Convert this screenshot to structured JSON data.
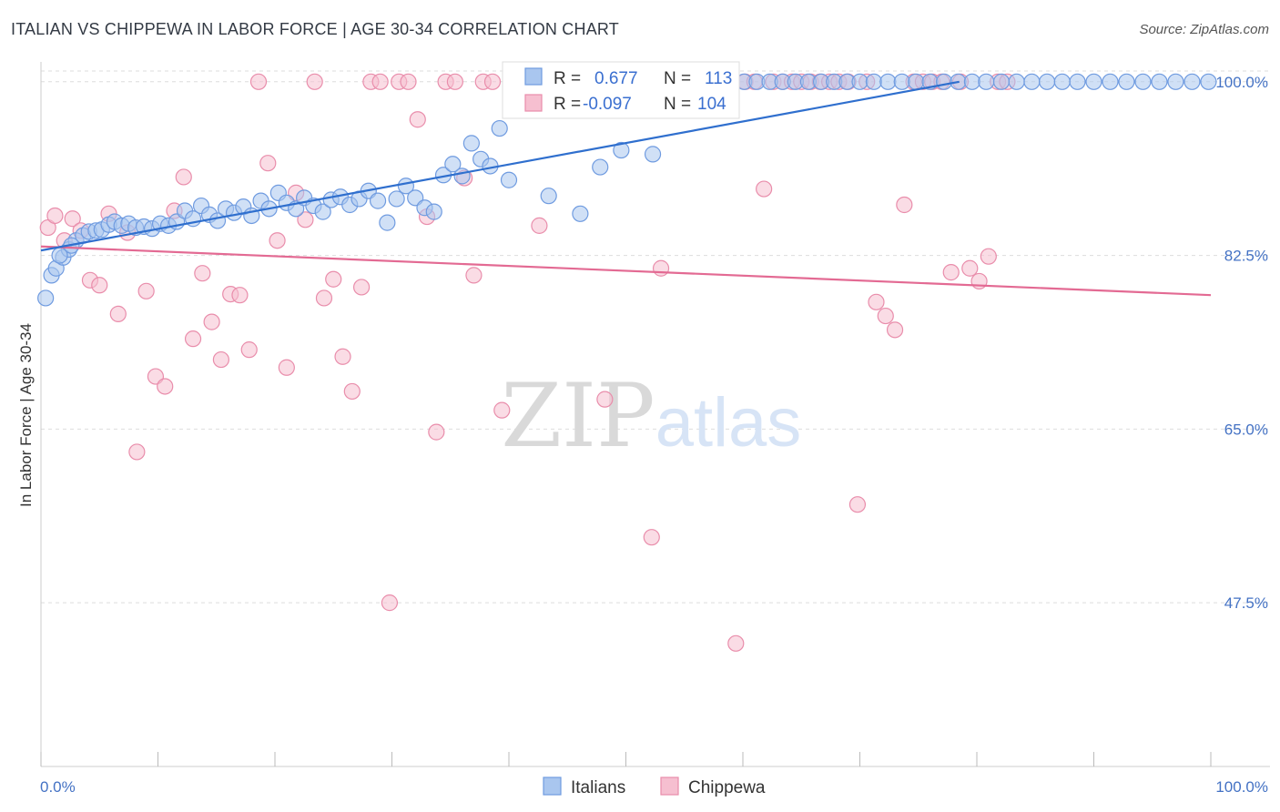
{
  "header": {
    "title": "ITALIAN VS CHIPPEWA IN LABOR FORCE | AGE 30-34 CORRELATION CHART",
    "source": "Source: ZipAtlas.com"
  },
  "watermark": {
    "zip": "ZIP",
    "atlas": "atlas"
  },
  "colors": {
    "blue_fill": "#a9c6ef",
    "blue_stroke": "#6f9be0",
    "blue_line": "#2f6fce",
    "pink_fill": "#f6bfd0",
    "pink_stroke": "#e98dab",
    "pink_line": "#e36a93",
    "tick_text": "#4472c4",
    "grid": "#dddddd"
  },
  "legend": {
    "rows": [
      {
        "r_label": "R =",
        "r_value": "0.677",
        "n_label": "N =",
        "n_value": "113",
        "series": "Italians"
      },
      {
        "r_label": "R =",
        "r_value": "-0.097",
        "n_label": "N =",
        "n_value": "104",
        "series": "Chippewa"
      }
    ]
  },
  "bottom_legend": [
    "Italians",
    "Chippewa"
  ],
  "chart_data": {
    "type": "scatter",
    "ylabel": "In Labor Force | Age 30-34",
    "xlim": [
      0,
      100
    ],
    "ylim": [
      31,
      102
    ],
    "x_tick_labels": [
      "0.0%",
      "100.0%"
    ],
    "y_ticks": [
      47.5,
      65.0,
      82.5,
      100.0
    ],
    "y_tick_labels": [
      "47.5%",
      "65.0%",
      "82.5%",
      "100.0%"
    ],
    "grid": true,
    "legend_position": "top-center",
    "series": [
      {
        "name": "Italians",
        "trend": {
          "x": [
            0,
            78.5
          ],
          "y": [
            83.0,
            100.0
          ]
        },
        "x": [
          0.4,
          0.9,
          1.3,
          1.9,
          2.4,
          3.0,
          3.6,
          4.1,
          4.7,
          5.2,
          5.8,
          6.3,
          6.9,
          7.5,
          8.1,
          8.8,
          9.5,
          10.2,
          10.9,
          11.6,
          12.3,
          13.0,
          13.7,
          14.4,
          15.1,
          15.8,
          16.5,
          17.3,
          18.0,
          18.8,
          19.5,
          20.3,
          21.0,
          21.8,
          22.5,
          23.3,
          24.1,
          24.8,
          25.6,
          26.4,
          27.2,
          28.0,
          28.8,
          29.6,
          30.4,
          31.2,
          32.0,
          32.8,
          33.6,
          34.4,
          35.2,
          36.0,
          36.8,
          37.6,
          38.4,
          39.2,
          40.0,
          40.8,
          41.6,
          42.4,
          43.4,
          44.3,
          45.2,
          46.1,
          47.0,
          47.8,
          48.7,
          49.6,
          50.5,
          51.4,
          52.3,
          53.2,
          54.1,
          55.0,
          56.0,
          57.0,
          58.0,
          59.0,
          60.1,
          61.2,
          62.3,
          63.4,
          64.5,
          65.6,
          66.7,
          67.8,
          68.9,
          70.0,
          71.2,
          72.4,
          73.6,
          74.8,
          76.0,
          77.2,
          78.4,
          79.6,
          80.8,
          82.1,
          83.4,
          84.7,
          86.0,
          87.3,
          88.6,
          90.0,
          91.4,
          92.8,
          94.2,
          95.6,
          97.0,
          98.4,
          99.8,
          1.6,
          2.6
        ],
        "y": [
          78.2,
          80.5,
          81.2,
          82.3,
          83.1,
          84.0,
          84.5,
          84.9,
          85.0,
          85.1,
          85.6,
          85.9,
          85.5,
          85.7,
          85.3,
          85.4,
          85.2,
          85.7,
          85.5,
          85.9,
          87.0,
          86.2,
          87.5,
          86.6,
          86.0,
          87.2,
          86.8,
          87.4,
          86.5,
          88.0,
          87.2,
          88.8,
          87.8,
          87.2,
          88.3,
          87.5,
          86.9,
          88.1,
          88.4,
          87.6,
          88.2,
          89.0,
          88.0,
          85.8,
          88.2,
          89.5,
          88.3,
          87.3,
          86.9,
          90.6,
          91.7,
          90.5,
          93.8,
          92.2,
          91.5,
          95.3,
          90.1,
          99.2,
          100.0,
          98.4,
          88.5,
          100.0,
          100.0,
          86.7,
          100.0,
          91.4,
          100.0,
          93.1,
          100.0,
          100.0,
          92.7,
          100.0,
          100.0,
          100.0,
          100.0,
          100.0,
          100.0,
          100.0,
          100.0,
          100.0,
          100.0,
          100.0,
          100.0,
          100.0,
          100.0,
          100.0,
          100.0,
          100.0,
          100.0,
          100.0,
          100.0,
          100.0,
          100.0,
          100.0,
          100.0,
          100.0,
          100.0,
          100.0,
          100.0,
          100.0,
          100.0,
          100.0,
          100.0,
          100.0,
          100.0,
          100.0,
          100.0,
          100.0,
          100.0,
          100.0,
          100.0,
          82.5,
          83.5
        ]
      },
      {
        "name": "Chippewa",
        "trend": {
          "x": [
            0,
            100
          ],
          "y": [
            83.4,
            78.5
          ]
        },
        "x": [
          0.6,
          1.2,
          2.0,
          2.7,
          3.4,
          4.2,
          5.0,
          5.8,
          6.6,
          7.4,
          8.2,
          9.0,
          9.8,
          10.6,
          11.4,
          12.2,
          13.0,
          13.8,
          14.6,
          15.4,
          16.2,
          17.0,
          17.8,
          18.6,
          19.4,
          20.2,
          21.0,
          21.8,
          22.6,
          23.4,
          24.2,
          25.0,
          25.8,
          26.6,
          27.4,
          28.2,
          29.0,
          29.8,
          30.6,
          31.4,
          32.2,
          33.0,
          33.8,
          34.6,
          35.4,
          36.2,
          37.0,
          37.8,
          38.6,
          39.4,
          40.2,
          41.0,
          41.8,
          42.6,
          43.4,
          44.2,
          45.0,
          45.8,
          46.6,
          47.4,
          48.2,
          49.0,
          49.8,
          50.6,
          51.4,
          52.2,
          53.0,
          53.8,
          54.6,
          55.4,
          56.2,
          57.0,
          57.8,
          58.6,
          59.4,
          60.2,
          61.0,
          61.8,
          62.6,
          63.4,
          64.2,
          65.0,
          65.8,
          66.6,
          67.4,
          68.2,
          69.0,
          69.8,
          70.6,
          71.4,
          72.2,
          73.0,
          73.8,
          74.6,
          75.4,
          76.2,
          77.0,
          77.8,
          78.6,
          79.4,
          80.2,
          81.0,
          81.8,
          82.6
        ],
        "y": [
          85.3,
          86.5,
          84.0,
          86.2,
          85.0,
          80.0,
          79.5,
          86.7,
          76.6,
          84.8,
          62.7,
          78.9,
          70.3,
          69.3,
          87.0,
          90.4,
          74.1,
          80.7,
          75.8,
          72.0,
          78.6,
          78.5,
          73.0,
          100.0,
          91.8,
          84.0,
          71.2,
          88.8,
          86.1,
          100.0,
          78.2,
          80.1,
          72.3,
          68.8,
          79.3,
          100.0,
          100.0,
          47.5,
          100.0,
          100.0,
          96.2,
          86.4,
          64.7,
          100.0,
          100.0,
          90.3,
          80.5,
          100.0,
          100.0,
          66.9,
          100.0,
          100.0,
          100.0,
          85.5,
          100.0,
          100.0,
          100.0,
          100.0,
          100.0,
          100.0,
          68.0,
          100.0,
          100.0,
          100.0,
          100.0,
          54.1,
          81.2,
          100.0,
          100.0,
          100.0,
          100.0,
          100.0,
          100.0,
          100.0,
          43.4,
          100.0,
          100.0,
          89.2,
          100.0,
          100.0,
          100.0,
          100.0,
          100.0,
          100.0,
          100.0,
          100.0,
          100.0,
          57.4,
          100.0,
          77.8,
          76.4,
          75.0,
          87.6,
          100.0,
          100.0,
          100.0,
          100.0,
          80.8,
          100.0,
          81.2,
          79.9,
          82.4,
          100.0,
          100.0
        ]
      }
    ]
  }
}
